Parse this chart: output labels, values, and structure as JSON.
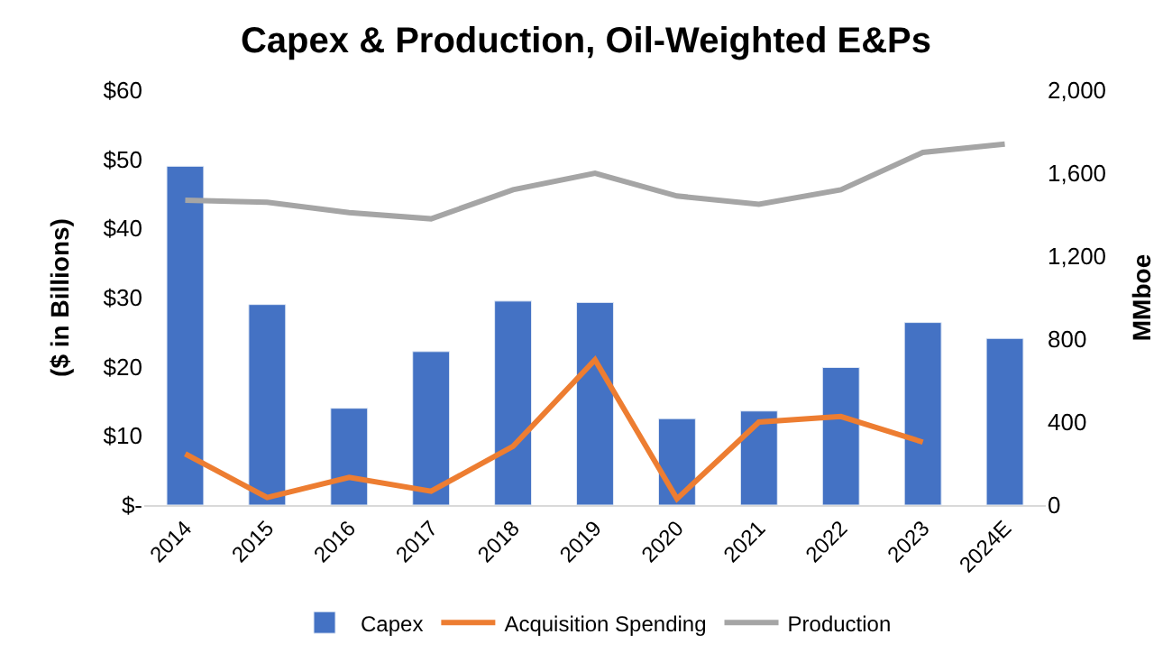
{
  "chart_data": {
    "type": "bar",
    "title": "Capex & Production, Oil-Weighted E&Ps",
    "ylabel": "($ in Billions)",
    "y2label": "MMboe",
    "categories": [
      "2014",
      "2015",
      "2016",
      "2017",
      "2018",
      "2019",
      "2020",
      "2021",
      "2022",
      "2023",
      "2024E"
    ],
    "series": [
      {
        "name": "Capex",
        "color": "#4472c4",
        "values": [
          49,
          29,
          14,
          22.2,
          29.5,
          29.3,
          12.5,
          13.6,
          19.9,
          26.4,
          24.1
        ]
      },
      {
        "name": "Acquisition Spending",
        "type": "line",
        "color": "#ed7d31",
        "values": [
          7.4,
          1.1,
          4,
          2,
          8.5,
          21,
          0.9,
          12,
          12.8,
          9.1,
          null
        ]
      },
      {
        "name": "Production",
        "type": "line",
        "axis": "y2",
        "color": "#a5a5a5",
        "values": [
          1470,
          1460,
          1410,
          1380,
          1520,
          1600,
          1490,
          1450,
          1520,
          1700,
          1740
        ]
      }
    ],
    "ylim": [
      0,
      60
    ],
    "yticks": [
      {
        "value": 0,
        "label": "$-"
      },
      {
        "value": 10,
        "label": "$10"
      },
      {
        "value": 20,
        "label": "$20"
      },
      {
        "value": 30,
        "label": "$30"
      },
      {
        "value": 40,
        "label": "$40"
      },
      {
        "value": 50,
        "label": "$50"
      },
      {
        "value": 60,
        "label": "$60"
      }
    ],
    "y2lim": [
      0,
      2000
    ],
    "y2ticks": [
      0,
      400,
      800,
      {
        "value": 1200,
        "label": "1,200"
      },
      {
        "value": 1600,
        "label": "1,600"
      },
      {
        "value": 2000,
        "label": "2,000"
      }
    ],
    "legend": "bottom",
    "marker": "none",
    "line_style": "solid"
  }
}
